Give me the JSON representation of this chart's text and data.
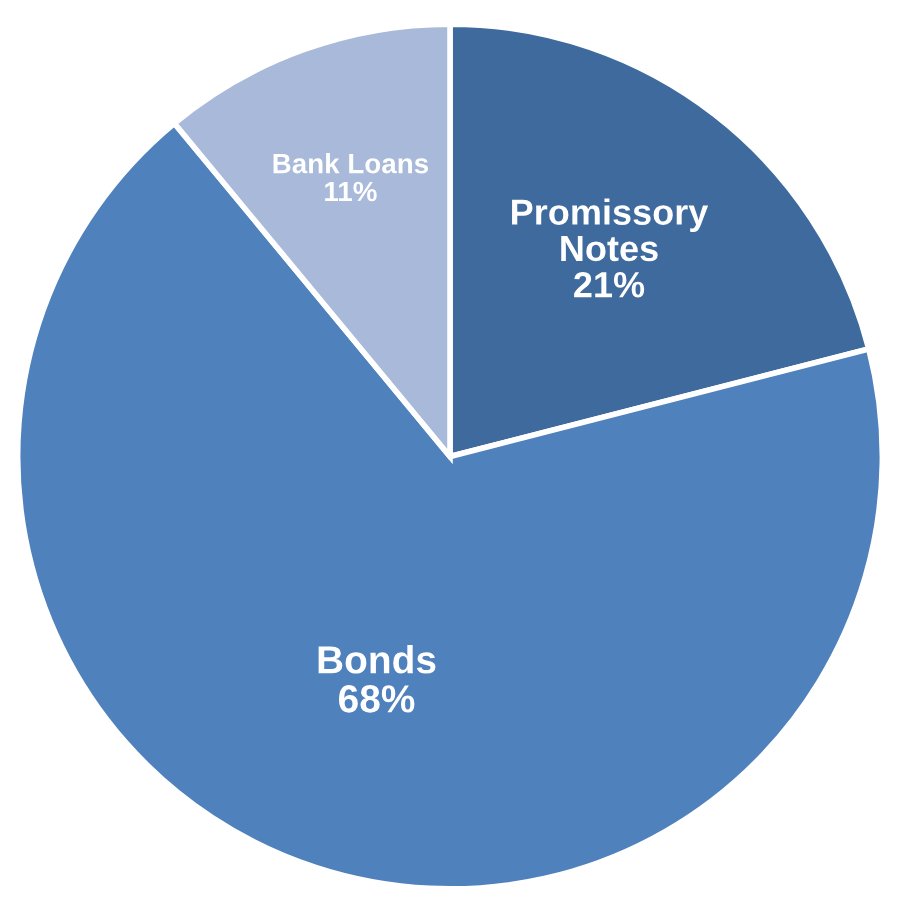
{
  "chart_data": {
    "type": "pie",
    "categories": [
      "Promissory Notes",
      "Bonds",
      "Bank Loans"
    ],
    "values": [
      21,
      68,
      11
    ],
    "value_labels": [
      "21%",
      "68%",
      "11%"
    ],
    "colors": [
      "#3e6a9e",
      "#4f81bd",
      "#a9b9d9"
    ],
    "legend": false
  }
}
